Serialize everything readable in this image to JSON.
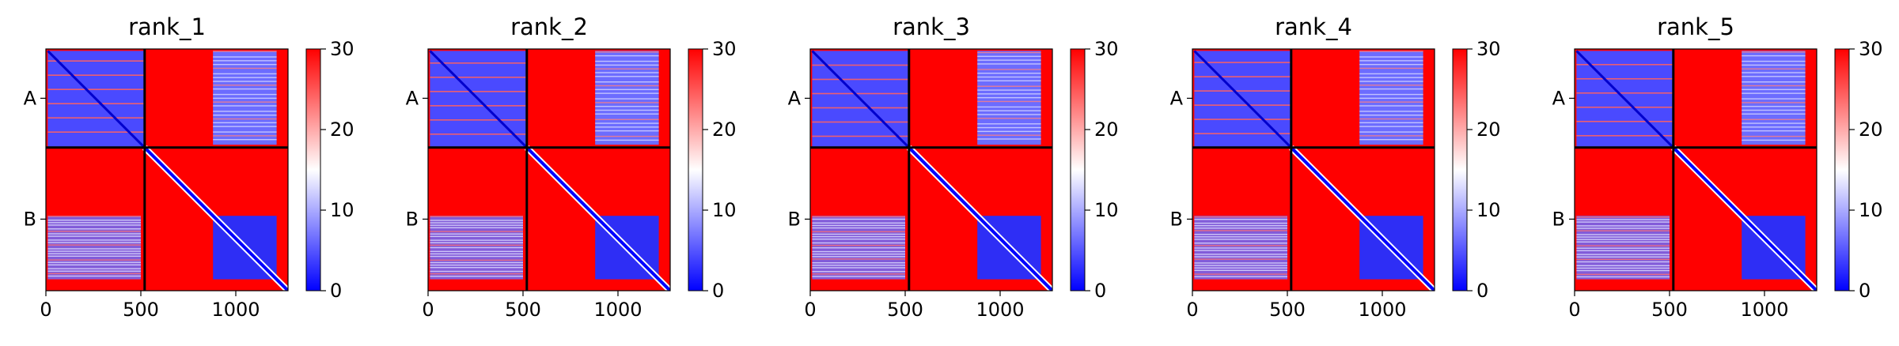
{
  "chart_data": {
    "type": "heatmap",
    "description_note": "",
    "shared": {
      "xlim": [
        0,
        1275
      ],
      "ylim": [
        0,
        1275
      ],
      "x_ticks": [
        0,
        500,
        1000
      ],
      "x_tick_labels": [
        "0",
        "500",
        "1000"
      ],
      "chain_labels": [
        "A",
        "B"
      ],
      "chain_boundary": 520,
      "chain_lengths": [
        520,
        755
      ],
      "colorbar": {
        "range": [
          0,
          30
        ],
        "ticks": [
          0,
          10,
          20,
          30
        ],
        "tick_labels": [
          "0",
          "10",
          "20",
          "30"
        ],
        "colors": [
          "#0000ff",
          "#ffffff",
          "#ff0000"
        ]
      },
      "features": {
        "A_low_block_1": [
          10,
          500
        ],
        "B_low_block": [
          880,
          1215
        ],
        "A_residue_start": 10,
        "B_residue_end": 1215
      }
    },
    "panels": [
      {
        "title": "rank_1"
      },
      {
        "title": "rank_2"
      },
      {
        "title": "rank_3"
      },
      {
        "title": "rank_4"
      },
      {
        "title": "rank_5"
      }
    ]
  }
}
